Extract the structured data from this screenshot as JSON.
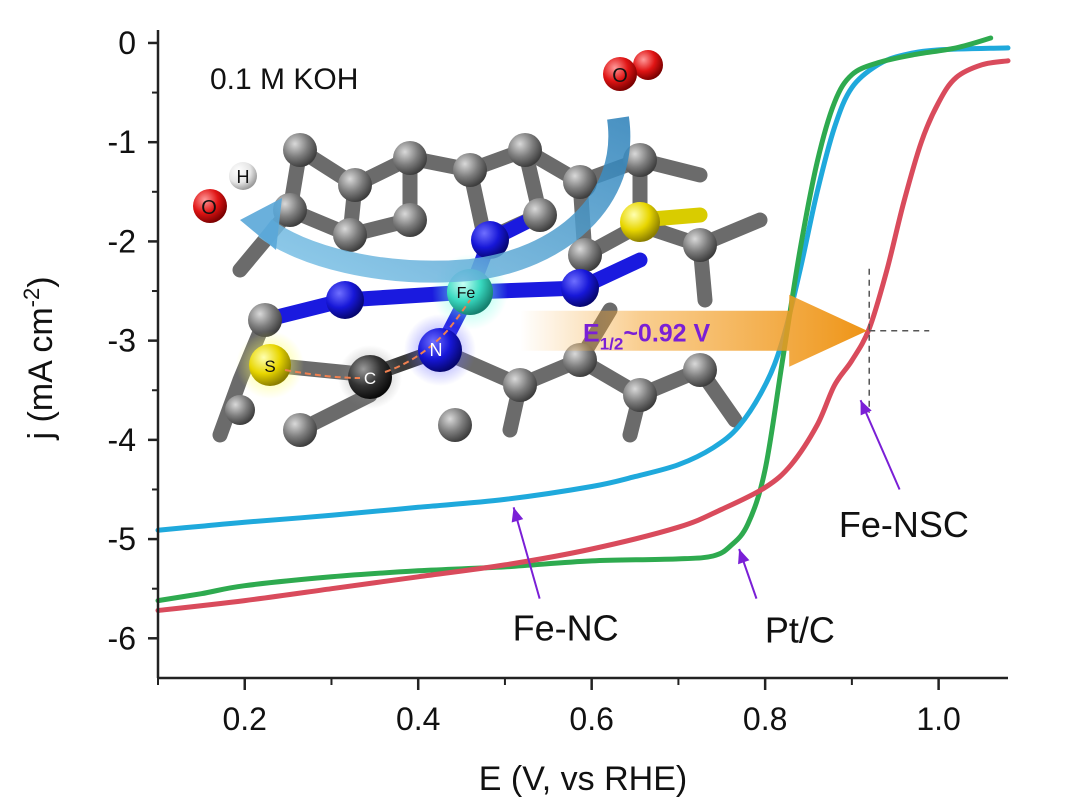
{
  "chart_data": {
    "type": "line",
    "xlabel": "E (V, vs RHE)",
    "ylabel_main": "j (mA cm",
    "ylabel_sup": "-2",
    "ylabel_close": ")",
    "xlim": [
      0.1,
      1.08
    ],
    "ylim": [
      -6.4,
      0.05
    ],
    "xticks": [
      0.2,
      0.4,
      0.6,
      0.8,
      1.0
    ],
    "xtick_labels": [
      "0.2",
      "0.4",
      "0.6",
      "0.8",
      "1.0"
    ],
    "yticks": [
      0,
      -1,
      -2,
      -3,
      -4,
      -5,
      -6
    ],
    "ytick_labels": [
      "0",
      "-1",
      "-2",
      "-3",
      "-4",
      "-5",
      "-6"
    ],
    "electrolyte": "0.1 M KOH",
    "half_wave": {
      "prefix": "E",
      "sub": "1/2",
      "suffix": "~0.92 V",
      "x": 0.92,
      "y": -2.9,
      "color": "#7a1fd6"
    },
    "series": [
      {
        "name": "Fe-NC",
        "color": "#1fa9dc",
        "points": [
          [
            0.1,
            -4.91
          ],
          [
            0.15,
            -4.87
          ],
          [
            0.2,
            -4.83
          ],
          [
            0.3,
            -4.76
          ],
          [
            0.4,
            -4.68
          ],
          [
            0.5,
            -4.6
          ],
          [
            0.6,
            -4.47
          ],
          [
            0.65,
            -4.37
          ],
          [
            0.7,
            -4.25
          ],
          [
            0.74,
            -4.08
          ],
          [
            0.77,
            -3.86
          ],
          [
            0.8,
            -3.45
          ],
          [
            0.82,
            -3.0
          ],
          [
            0.84,
            -2.3
          ],
          [
            0.86,
            -1.5
          ],
          [
            0.88,
            -0.85
          ],
          [
            0.9,
            -0.45
          ],
          [
            0.93,
            -0.22
          ],
          [
            0.96,
            -0.12
          ],
          [
            1.0,
            -0.07
          ],
          [
            1.08,
            -0.05
          ]
        ]
      },
      {
        "name": "Pt/C",
        "color": "#2eaa4f",
        "points": [
          [
            0.1,
            -5.62
          ],
          [
            0.15,
            -5.55
          ],
          [
            0.2,
            -5.47
          ],
          [
            0.3,
            -5.38
          ],
          [
            0.4,
            -5.32
          ],
          [
            0.5,
            -5.28
          ],
          [
            0.6,
            -5.22
          ],
          [
            0.7,
            -5.2
          ],
          [
            0.74,
            -5.17
          ],
          [
            0.76,
            -5.07
          ],
          [
            0.78,
            -4.85
          ],
          [
            0.8,
            -4.3
          ],
          [
            0.82,
            -3.2
          ],
          [
            0.84,
            -2.1
          ],
          [
            0.86,
            -1.2
          ],
          [
            0.88,
            -0.6
          ],
          [
            0.9,
            -0.32
          ],
          [
            0.93,
            -0.2
          ],
          [
            0.97,
            -0.12
          ],
          [
            1.02,
            -0.05
          ],
          [
            1.06,
            0.05
          ]
        ]
      },
      {
        "name": "Fe-NSC",
        "color": "#d94b5c",
        "points": [
          [
            0.1,
            -5.72
          ],
          [
            0.2,
            -5.62
          ],
          [
            0.3,
            -5.5
          ],
          [
            0.4,
            -5.38
          ],
          [
            0.5,
            -5.26
          ],
          [
            0.6,
            -5.1
          ],
          [
            0.7,
            -4.88
          ],
          [
            0.75,
            -4.7
          ],
          [
            0.8,
            -4.48
          ],
          [
            0.83,
            -4.25
          ],
          [
            0.86,
            -3.85
          ],
          [
            0.88,
            -3.45
          ],
          [
            0.9,
            -3.2
          ],
          [
            0.92,
            -2.88
          ],
          [
            0.94,
            -2.3
          ],
          [
            0.96,
            -1.6
          ],
          [
            0.98,
            -1.0
          ],
          [
            1.0,
            -0.6
          ],
          [
            1.02,
            -0.35
          ],
          [
            1.05,
            -0.22
          ],
          [
            1.08,
            -0.18
          ]
        ]
      }
    ],
    "series_labels": [
      {
        "text": "Fe-NC",
        "lx": 0.57,
        "ly": -5.9,
        "ax1": 0.54,
        "ay1": -5.6,
        "ax2": 0.51,
        "ay2": -4.68
      },
      {
        "text": "Pt/C",
        "lx": 0.84,
        "ly": -5.92,
        "ax1": 0.79,
        "ay1": -5.6,
        "ax2": 0.77,
        "ay2": -5.1
      },
      {
        "text": "Fe-NSC",
        "lx": 0.96,
        "ly": -4.86,
        "ax1": 0.955,
        "ay1": -4.5,
        "ax2": 0.91,
        "ay2": -3.6
      }
    ],
    "molecule_labels": {
      "o2_atom": "O",
      "h_atom": "H",
      "o_atom": "O",
      "fe_atom": "Fe",
      "n_atom": "N",
      "c_atom": "C",
      "s_atom": "S"
    }
  }
}
